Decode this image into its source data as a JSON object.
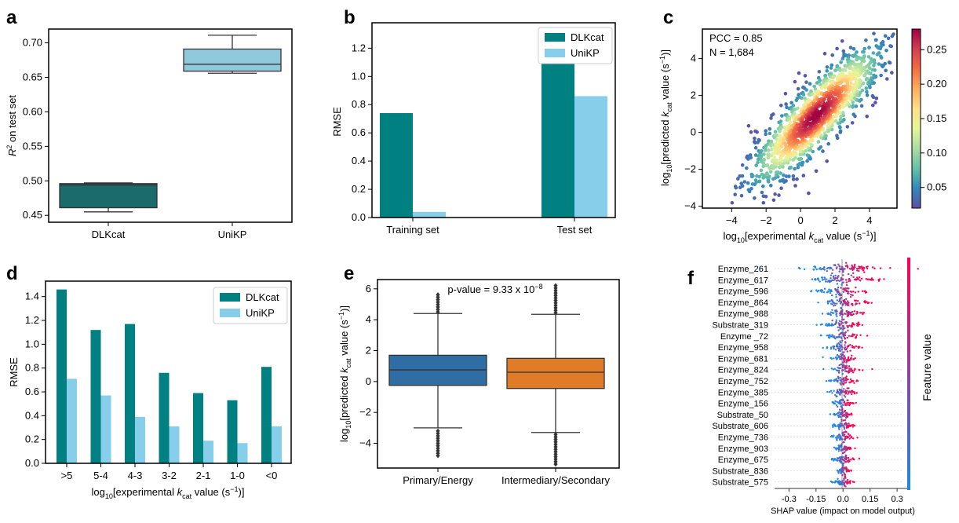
{
  "colors": {
    "dlkcat": "#008080",
    "unikp": "#87ceeb",
    "box_a_dlkcat": "#1b6b6b",
    "box_a_unikp": "#90c9dc",
    "box_e_primary": "#2e6ea4",
    "box_e_intermediary": "#e07b27",
    "scatter_cmap": [
      "#5e4fa2",
      "#3288bd",
      "#66c2a5",
      "#abdda4",
      "#e6f598",
      "#fee08b",
      "#fdae61",
      "#f46d43",
      "#d53e4f",
      "#9e0142"
    ],
    "shap_low": "#1e88e5",
    "shap_high": "#ff0052"
  },
  "chart_data": [
    {
      "panel": "a",
      "type": "box",
      "categories": [
        "DLKcat",
        "UniKP"
      ],
      "ylabel": "R² on test set",
      "ylabel_pre": "R",
      "ylabel_sup": "2",
      "ylabel_post": " on test set",
      "ylim": [
        0.44,
        0.72
      ],
      "yticks": [
        "0.45",
        "0.50",
        "0.55",
        "0.60",
        "0.65",
        "0.70"
      ],
      "boxes": [
        {
          "name": "DLKcat",
          "whislo": 0.455,
          "q1": 0.461,
          "med": 0.494,
          "q3": 0.496,
          "whishi": 0.497
        },
        {
          "name": "UniKP",
          "whislo": 0.656,
          "q1": 0.659,
          "med": 0.669,
          "q3": 0.691,
          "whishi": 0.711
        }
      ]
    },
    {
      "panel": "b",
      "type": "bar",
      "categories": [
        "Training set",
        "Test set"
      ],
      "series": [
        {
          "name": "DLKcat",
          "values": [
            0.74,
            1.09
          ]
        },
        {
          "name": "UniKP",
          "values": [
            0.04,
            0.86
          ]
        }
      ],
      "ylabel": "RMSE",
      "ylim": [
        0,
        1.38
      ],
      "yticks": [
        "0.0",
        "0.2",
        "0.4",
        "0.6",
        "0.8",
        "1.0",
        "1.2"
      ]
    },
    {
      "panel": "c",
      "type": "scatter",
      "annotations": [
        "PCC = 0.85",
        "N = 1,684"
      ],
      "xlabel_pre": "log",
      "xlabel_sub": "10",
      "xlabel_mid": "[experimental ",
      "xlabel_k": "k",
      "xlabel_ksub": "cat",
      "xlabel_post": " value (s",
      "xlabel_sup": "−1",
      "xlabel_end": ")]",
      "ylabel_pre": "log",
      "ylabel_sub": "10",
      "ylabel_mid": "[predicted ",
      "ylabel_k": "k",
      "ylabel_ksub": "cat",
      "ylabel_post": " value (s",
      "ylabel_sup": "−1",
      "ylabel_end": ")]",
      "xlim": [
        -5.7,
        5.6
      ],
      "ylim": [
        -4.1,
        5.6
      ],
      "xticks": [
        "−4",
        "−2",
        "0",
        "2",
        "4"
      ],
      "yticks": [
        "−4",
        "−2",
        "0",
        "2",
        "4"
      ],
      "pcc": 0.85,
      "n": 1684,
      "colorbar_range": [
        0.02,
        0.28
      ],
      "colorbar_ticks": [
        "0.05",
        "0.10",
        "0.15",
        "0.20",
        "0.25"
      ]
    },
    {
      "panel": "d",
      "type": "bar",
      "categories": [
        ">5",
        "5-4",
        "4-3",
        "3-2",
        "2-1",
        "1-0",
        "<0"
      ],
      "series": [
        {
          "name": "DLKcat",
          "values": [
            1.46,
            1.12,
            1.17,
            0.76,
            0.59,
            0.53,
            0.81
          ]
        },
        {
          "name": "UniKP",
          "values": [
            0.71,
            0.57,
            0.39,
            0.31,
            0.19,
            0.17,
            0.31
          ]
        }
      ],
      "ylabel": "RMSE",
      "xlabel_pre": "log",
      "xlabel_sub": "10",
      "xlabel_mid": "[experimental ",
      "xlabel_k": "k",
      "xlabel_ksub": "cat",
      "xlabel_post": " value (s",
      "xlabel_sup": "−1",
      "xlabel_end": ")]",
      "ylim": [
        0,
        1.53
      ],
      "yticks": [
        "0.0",
        "0.2",
        "0.4",
        "0.6",
        "0.8",
        "1.0",
        "1.2",
        "1.4"
      ]
    },
    {
      "panel": "e",
      "type": "box",
      "categories": [
        "Primary/Energy",
        "Intermediary/Secondary"
      ],
      "annotation_pre": "p-value = 9.33 x 10",
      "annotation_sup": "−8",
      "ylabel_pre": "log",
      "ylabel_sub": "10",
      "ylabel_mid": "[predicted ",
      "ylabel_k": "k",
      "ylabel_ksub": "cat",
      "ylabel_post": " value (s",
      "ylabel_sup": "−1",
      "ylabel_end": ")]",
      "ylim": [
        -5.6,
        6.6
      ],
      "yticks": [
        "−4",
        "−2",
        "0",
        "2",
        "4",
        "6"
      ],
      "boxes": [
        {
          "name": "Primary/Energy",
          "whislo": -3.0,
          "q1": -0.25,
          "med": 0.75,
          "q3": 1.7,
          "whishi": 4.4,
          "fliers_low": [
            -3.1,
            -4.8
          ],
          "fliers_high": [
            4.5,
            5.7
          ]
        },
        {
          "name": "Intermediary/Secondary",
          "whislo": -3.3,
          "q1": -0.45,
          "med": 0.6,
          "q3": 1.5,
          "whishi": 4.35,
          "fliers_low": [
            -3.4,
            -5.35
          ],
          "fliers_high": [
            4.45,
            6.3
          ]
        }
      ]
    },
    {
      "panel": "f",
      "type": "beeswarm",
      "features": [
        "Enzyme_261",
        "Enzyme_617",
        "Enzyme_596",
        "Enzyme_864",
        "Enzyme_988",
        "Substrate_319",
        "Enzyme _72",
        "Enzyme_958",
        "Enzyme_681",
        "Enzyme_824",
        "Enzyme_752",
        "Enzyme_385",
        "Enzyme_156",
        "Substrate_50",
        "Substrate_606",
        "Enzyme_736",
        "Enzyme_903",
        "Enzyme_675",
        "Substrate_836",
        "Substrate_575"
      ],
      "spread": [
        0.32,
        0.28,
        0.22,
        0.2,
        0.15,
        0.17,
        0.14,
        0.12,
        0.11,
        0.13,
        0.1,
        0.11,
        0.09,
        0.08,
        0.09,
        0.1,
        0.07,
        0.1,
        0.06,
        0.07
      ],
      "xlabel": "SHAP value (impact on model output)",
      "xlim": [
        -0.38,
        0.33
      ],
      "xticks": [
        "-0.3",
        "-0.15",
        "0.0",
        "0.15",
        "0.3"
      ],
      "colorbar_label": "Feature value"
    }
  ],
  "panel_labels": [
    "a",
    "b",
    "c",
    "d",
    "e",
    "f"
  ]
}
